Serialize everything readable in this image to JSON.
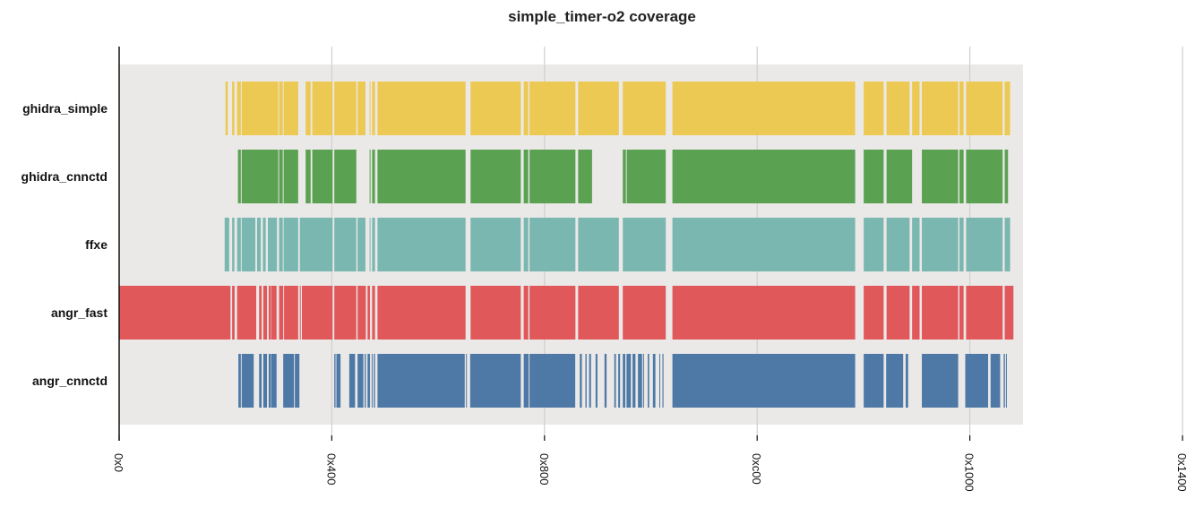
{
  "chart_data": {
    "type": "coverage-bars",
    "title": "simple_timer-o2 coverage",
    "xlabel": "",
    "ylabel": "",
    "xlim": [
      0,
      5120
    ],
    "x_ticks": [
      0,
      1024,
      2048,
      3072,
      4096,
      5120
    ],
    "x_tick_labels": [
      "0x0",
      "0x400",
      "0x800",
      "0xc00",
      "0x1000",
      "0x1400"
    ],
    "shaded_range": [
      0,
      4352
    ],
    "grid": true,
    "legend": "none",
    "background_color": "#ebe9e8",
    "series": [
      {
        "name": "ghidra_simple",
        "color": "#ecc953",
        "segments": [
          [
            512,
            523
          ],
          [
            544,
            555
          ],
          [
            568,
            586
          ],
          [
            590,
            766
          ],
          [
            770,
            788
          ],
          [
            792,
            862
          ],
          [
            898,
            922
          ],
          [
            930,
            1028
          ],
          [
            1036,
            1142
          ],
          [
            1148,
            1186
          ],
          [
            1206,
            1210
          ],
          [
            1218,
            1232
          ],
          [
            1244,
            1668
          ],
          [
            1692,
            1934
          ],
          [
            1948,
            1970
          ],
          [
            1976,
            2197
          ],
          [
            2210,
            2406
          ],
          [
            2425,
            2632
          ],
          [
            2664,
            3544
          ],
          [
            3585,
            3681
          ],
          [
            3695,
            3806
          ],
          [
            3818,
            3854
          ],
          [
            3865,
            4040
          ],
          [
            4046,
            4066
          ],
          [
            4078,
            4254
          ],
          [
            4264,
            4290
          ]
        ]
      },
      {
        "name": "ghidra_cnnctd",
        "color": "#5ba152",
        "segments": [
          [
            572,
            586
          ],
          [
            590,
            766
          ],
          [
            770,
            788
          ],
          [
            792,
            862
          ],
          [
            898,
            922
          ],
          [
            930,
            1028
          ],
          [
            1036,
            1142
          ],
          [
            1206,
            1210
          ],
          [
            1218,
            1232
          ],
          [
            1244,
            1668
          ],
          [
            1692,
            1934
          ],
          [
            1948,
            1970
          ],
          [
            1976,
            2197
          ],
          [
            2210,
            2277
          ],
          [
            2425,
            2440
          ],
          [
            2444,
            2632
          ],
          [
            2664,
            3544
          ],
          [
            3585,
            3681
          ],
          [
            3695,
            3818
          ],
          [
            3865,
            4040
          ],
          [
            4046,
            4066
          ],
          [
            4078,
            4254
          ],
          [
            4264,
            4280
          ]
        ]
      },
      {
        "name": "ffxe",
        "color": "#7bb7b1",
        "segments": [
          [
            508,
            530
          ],
          [
            544,
            555
          ],
          [
            568,
            586
          ],
          [
            590,
            656
          ],
          [
            664,
            682
          ],
          [
            692,
            706
          ],
          [
            716,
            760
          ],
          [
            770,
            788
          ],
          [
            792,
            862
          ],
          [
            870,
            1028
          ],
          [
            1036,
            1142
          ],
          [
            1148,
            1186
          ],
          [
            1206,
            1210
          ],
          [
            1218,
            1232
          ],
          [
            1244,
            1668
          ],
          [
            1692,
            1934
          ],
          [
            1948,
            1970
          ],
          [
            1976,
            2197
          ],
          [
            2210,
            2406
          ],
          [
            2425,
            2632
          ],
          [
            2664,
            3544
          ],
          [
            3585,
            3681
          ],
          [
            3695,
            3806
          ],
          [
            3818,
            3854
          ],
          [
            3865,
            4040
          ],
          [
            4046,
            4066
          ],
          [
            4078,
            4254
          ],
          [
            4264,
            4290
          ]
        ]
      },
      {
        "name": "angr_fast",
        "color": "#e0585a",
        "segments": [
          [
            0,
            536
          ],
          [
            544,
            556
          ],
          [
            568,
            660
          ],
          [
            674,
            686
          ],
          [
            694,
            712
          ],
          [
            720,
            730
          ],
          [
            732,
            758
          ],
          [
            770,
            790
          ],
          [
            794,
            862
          ],
          [
            870,
            874
          ],
          [
            880,
            1028
          ],
          [
            1036,
            1142
          ],
          [
            1148,
            1188
          ],
          [
            1196,
            1208
          ],
          [
            1218,
            1232
          ],
          [
            1244,
            1668
          ],
          [
            1692,
            1934
          ],
          [
            1948,
            1970
          ],
          [
            1976,
            2197
          ],
          [
            2210,
            2406
          ],
          [
            2425,
            2632
          ],
          [
            2664,
            3544
          ],
          [
            3585,
            3681
          ],
          [
            3695,
            3806
          ],
          [
            3818,
            3854
          ],
          [
            3865,
            4040
          ],
          [
            4046,
            4066
          ],
          [
            4078,
            4254
          ],
          [
            4264,
            4306
          ]
        ]
      },
      {
        "name": "angr_cnnctd",
        "color": "#4e79a6",
        "segments": [
          [
            574,
            586
          ],
          [
            590,
            648
          ],
          [
            674,
            686
          ],
          [
            694,
            712
          ],
          [
            720,
            730
          ],
          [
            732,
            758
          ],
          [
            790,
            842
          ],
          [
            846,
            868
          ],
          [
            1036,
            1042
          ],
          [
            1046,
            1066
          ],
          [
            1108,
            1136
          ],
          [
            1148,
            1176
          ],
          [
            1182,
            1188
          ],
          [
            1196,
            1208
          ],
          [
            1216,
            1220
          ],
          [
            1226,
            1232
          ],
          [
            1244,
            1664
          ],
          [
            1670,
            1674
          ],
          [
            1690,
            1934
          ],
          [
            1948,
            1972
          ],
          [
            1976,
            2196
          ],
          [
            2218,
            2228
          ],
          [
            2245,
            2251
          ],
          [
            2263,
            2272
          ],
          [
            2294,
            2303
          ],
          [
            2337,
            2347
          ],
          [
            2384,
            2392
          ],
          [
            2403,
            2412
          ],
          [
            2425,
            2437
          ],
          [
            2443,
            2464
          ],
          [
            2472,
            2486
          ],
          [
            2498,
            2518
          ],
          [
            2523,
            2527
          ],
          [
            2545,
            2552
          ],
          [
            2570,
            2582
          ],
          [
            2601,
            2605
          ],
          [
            2616,
            2621
          ],
          [
            2664,
            3544
          ],
          [
            3585,
            3681
          ],
          [
            3693,
            3775
          ],
          [
            3787,
            3799
          ],
          [
            3865,
            4040
          ],
          [
            4074,
            4184
          ],
          [
            4196,
            4242
          ],
          [
            4259,
            4265
          ],
          [
            4270,
            4273
          ]
        ]
      }
    ]
  }
}
